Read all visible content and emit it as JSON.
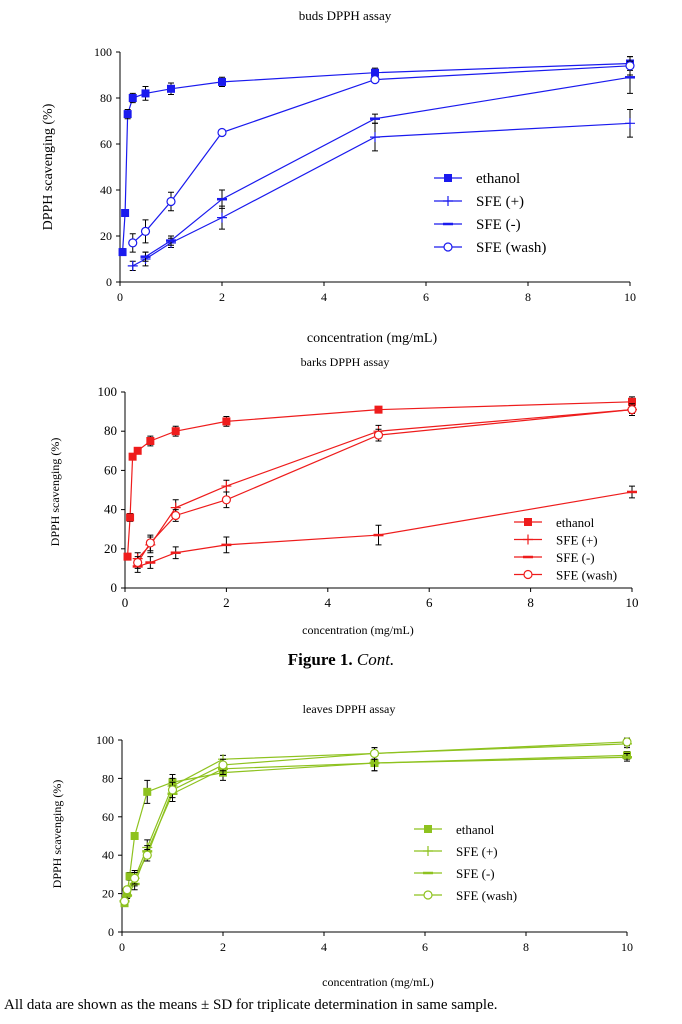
{
  "figure_caption": {
    "label": "Figure 1.",
    "cont": "Cont."
  },
  "footnote": "All data are shown as the means ± SD for triplicate determination in same sample.",
  "chart_data": [
    {
      "type": "line",
      "title": "buds DPPH assay",
      "xlabel": "concentration (mg/mL)",
      "ylabel": "DPPH scavenging (%)",
      "xlim": [
        0,
        10
      ],
      "ylim": [
        0,
        100
      ],
      "xticks": [
        0,
        2,
        4,
        6,
        8,
        10
      ],
      "yticks": [
        0,
        20,
        40,
        60,
        80,
        100
      ],
      "color": "#1a1aee",
      "legend_position": "center-right",
      "series": [
        {
          "name": "ethanol",
          "marker": "square",
          "x": [
            0.05,
            0.1,
            0.15,
            0.25,
            0.5,
            1,
            2,
            5,
            10
          ],
          "y": [
            13,
            30,
            73,
            80,
            82,
            84,
            87,
            91,
            95
          ],
          "err": [
            1.5,
            1.5,
            2,
            2,
            3,
            2.5,
            2,
            2,
            3
          ]
        },
        {
          "name": "SFE (+)",
          "marker": "plus",
          "x": [
            0.25,
            0.5,
            1,
            2,
            5,
            10
          ],
          "y": [
            7,
            10,
            17,
            28,
            63,
            69
          ],
          "err": [
            2,
            3,
            2,
            5,
            6,
            6
          ]
        },
        {
          "name": "SFE (-)",
          "marker": "dash",
          "x": [
            0.5,
            1,
            2,
            5,
            10
          ],
          "y": [
            11,
            18,
            36,
            71,
            89
          ],
          "err": [
            2,
            2,
            4,
            2,
            7
          ]
        },
        {
          "name": "SFE (wash)",
          "marker": "circle",
          "x": [
            0.25,
            0.5,
            1,
            2,
            5,
            10
          ],
          "y": [
            17,
            22,
            35,
            65,
            88,
            94
          ],
          "err": [
            4,
            5,
            4,
            1,
            1,
            4
          ]
        }
      ]
    },
    {
      "type": "line",
      "title": "barks DPPH assay",
      "xlabel": "concentration (mg/mL)",
      "ylabel": "DPPH scavenging (%)",
      "xlim": [
        0,
        10
      ],
      "ylim": [
        0,
        100
      ],
      "xticks": [
        0,
        2,
        4,
        6,
        8,
        10
      ],
      "yticks": [
        0,
        20,
        40,
        60,
        80,
        100
      ],
      "color": "#ee1c1c",
      "legend_position": "bottom-right",
      "series": [
        {
          "name": "ethanol",
          "marker": "square",
          "x": [
            0.05,
            0.1,
            0.15,
            0.25,
            0.5,
            1,
            2,
            5,
            10
          ],
          "y": [
            16,
            36,
            67,
            70,
            75,
            80,
            85,
            91,
            95
          ],
          "err": [
            1.5,
            2,
            1.5,
            1.5,
            2.5,
            2.5,
            2.5,
            1.5,
            2.5
          ]
        },
        {
          "name": "SFE (+)",
          "marker": "plus",
          "x": [
            0.25,
            0.5,
            1,
            2,
            5,
            10
          ],
          "y": [
            15,
            22,
            41,
            52,
            80,
            91
          ],
          "err": [
            3,
            4,
            4,
            3,
            3,
            3
          ]
        },
        {
          "name": "SFE (-)",
          "marker": "dash",
          "x": [
            0.25,
            0.5,
            1,
            2,
            5,
            10
          ],
          "y": [
            11,
            13,
            18,
            22,
            27,
            49
          ],
          "err": [
            3,
            3,
            3,
            4,
            5,
            3
          ]
        },
        {
          "name": "SFE (wash)",
          "marker": "circle",
          "x": [
            0.25,
            0.5,
            1,
            2,
            5,
            10
          ],
          "y": [
            13,
            23,
            37,
            45,
            78,
            91
          ],
          "err": [
            3,
            4,
            3,
            4,
            3,
            2
          ]
        }
      ]
    },
    {
      "type": "line",
      "title": "leaves DPPH assay",
      "xlabel": "concentration (mg/mL)",
      "ylabel": "DPPH scavenging (%)",
      "xlim": [
        0,
        10
      ],
      "ylim": [
        0,
        100
      ],
      "xticks": [
        0,
        2,
        4,
        6,
        8,
        10
      ],
      "yticks": [
        0,
        20,
        40,
        60,
        80,
        100
      ],
      "color": "#8ec21f",
      "legend_position": "center-right",
      "series": [
        {
          "name": "ethanol",
          "marker": "square",
          "x": [
            0.05,
            0.1,
            0.15,
            0.25,
            0.5,
            1,
            2,
            5,
            10
          ],
          "y": [
            15,
            20,
            29,
            50,
            73,
            78,
            83,
            88,
            92
          ],
          "err": [
            1.5,
            1.5,
            2,
            1.5,
            6,
            4,
            4,
            4,
            2
          ]
        },
        {
          "name": "SFE (+)",
          "marker": "plus",
          "x": [
            0.05,
            0.1,
            0.25,
            0.5,
            1,
            2,
            5,
            10
          ],
          "y": [
            16,
            19,
            28,
            44,
            76,
            90,
            93,
            98
          ],
          "err": [
            1.5,
            1.5,
            4,
            4,
            4,
            2,
            3,
            2
          ]
        },
        {
          "name": "SFE (-)",
          "marker": "dash",
          "x": [
            0.05,
            0.1,
            0.25,
            0.5,
            1,
            2,
            5,
            10
          ],
          "y": [
            16,
            19,
            25,
            42,
            72,
            85,
            88,
            91
          ],
          "err": [
            1.5,
            1.5,
            3,
            3,
            4,
            3,
            4,
            2
          ]
        },
        {
          "name": "SFE (wash)",
          "marker": "circle",
          "x": [
            0.05,
            0.1,
            0.25,
            0.5,
            1,
            2,
            5,
            10
          ],
          "y": [
            16,
            22,
            28,
            40,
            74,
            87,
            93,
            99
          ],
          "err": [
            1.5,
            1.5,
            3,
            3,
            4,
            3,
            3,
            2
          ]
        }
      ]
    }
  ]
}
